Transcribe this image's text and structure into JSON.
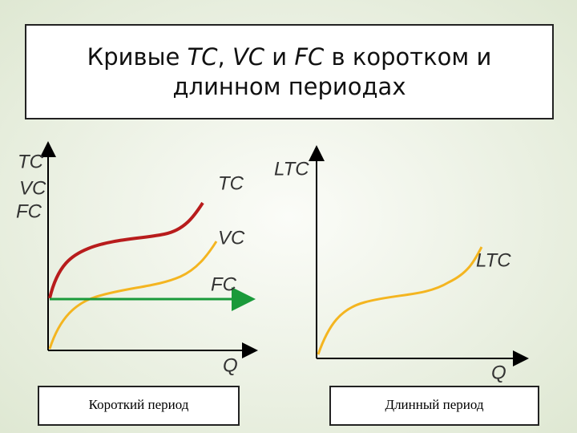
{
  "title": {
    "line1": [
      "Кривые ",
      "TC",
      ", ",
      "VC",
      " и ",
      "FC",
      " в коротком и"
    ],
    "line2": "длинном периодах"
  },
  "short_run": {
    "axis_labels": [
      "TC",
      "VC",
      "FC"
    ],
    "curve_labels": [
      "TC",
      "VC",
      "FC"
    ],
    "x_label": "Q",
    "caption": "Короткий период"
  },
  "long_run": {
    "axis_label": "LTC",
    "curve_label": "LTC",
    "x_label": "Q",
    "caption": "Длинный период"
  }
}
